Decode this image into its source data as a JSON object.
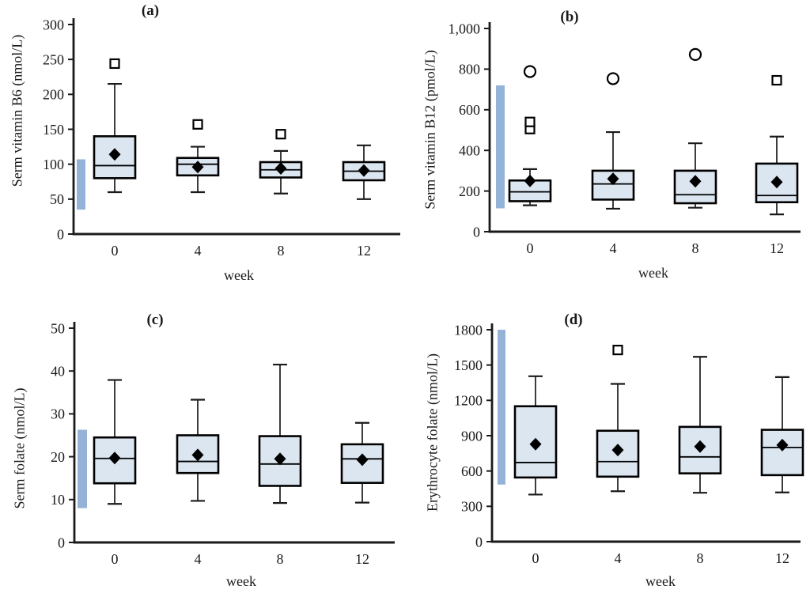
{
  "figure": {
    "background": "#ffffff"
  },
  "colors": {
    "box_fill": "#dce6f1",
    "box_border": "#000000",
    "ref_bar": "#95b3d7",
    "axis": "#1a1a1a",
    "text": "#1a1a1a"
  },
  "chart_data": [
    {
      "type": "box",
      "title": "(a)",
      "ylabel": "Serm vitamin B6 (nmol/L)",
      "xlabel": "week",
      "categories": [
        "0",
        "4",
        "8",
        "12"
      ],
      "ylim": [
        0,
        300
      ],
      "yticks": [
        0,
        50,
        100,
        150,
        200,
        250,
        300
      ],
      "ytick_labels": [
        "0",
        "50",
        "100",
        "150",
        "200",
        "250",
        "300"
      ],
      "reference_range": [
        35,
        107
      ],
      "legend": "grid off, reference range drawn as blue bar left of week 0",
      "boxes": [
        {
          "week": "0",
          "low": 60,
          "q1": 80,
          "median": 98,
          "q3": 140,
          "high": 215,
          "mean": 114,
          "outliers": [
            {
              "value": 244,
              "shape": "square"
            }
          ]
        },
        {
          "week": "4",
          "low": 60,
          "q1": 84,
          "median": 100,
          "q3": 109,
          "high": 125,
          "mean": 96,
          "outliers": [
            {
              "value": 157,
              "shape": "square"
            }
          ]
        },
        {
          "week": "8",
          "low": 58,
          "q1": 81,
          "median": 92,
          "q3": 103,
          "high": 119,
          "mean": 94,
          "outliers": [
            {
              "value": 143,
              "shape": "square"
            }
          ]
        },
        {
          "week": "12",
          "low": 50,
          "q1": 77,
          "median": 90,
          "q3": 103,
          "high": 127,
          "mean": 91,
          "outliers": []
        }
      ]
    },
    {
      "type": "box",
      "title": "(b)",
      "ylabel": "Serm vitamin B12 (pmol/L)",
      "xlabel": "week",
      "categories": [
        "0",
        "4",
        "8",
        "12"
      ],
      "ylim": [
        0,
        1000
      ],
      "yticks": [
        0,
        200,
        400,
        600,
        800,
        1000
      ],
      "ytick_labels": [
        "0",
        "200",
        "400",
        "600",
        "800",
        "1,000"
      ],
      "reference_range": [
        115,
        720
      ],
      "boxes": [
        {
          "week": "0",
          "low": 130,
          "q1": 150,
          "median": 196,
          "q3": 252,
          "high": 308,
          "mean": 250,
          "outliers": [
            {
              "value": 505,
              "shape": "square"
            },
            {
              "value": 540,
              "shape": "square"
            },
            {
              "value": 788,
              "shape": "circle"
            }
          ]
        },
        {
          "week": "4",
          "low": 113,
          "q1": 158,
          "median": 235,
          "q3": 300,
          "high": 490,
          "mean": 260,
          "outliers": [
            {
              "value": 753,
              "shape": "circle"
            }
          ]
        },
        {
          "week": "8",
          "low": 118,
          "q1": 140,
          "median": 182,
          "q3": 300,
          "high": 435,
          "mean": 248,
          "outliers": [
            {
              "value": 872,
              "shape": "circle"
            }
          ]
        },
        {
          "week": "12",
          "low": 85,
          "q1": 145,
          "median": 178,
          "q3": 335,
          "high": 468,
          "mean": 244,
          "outliers": [
            {
              "value": 745,
              "shape": "square"
            }
          ]
        }
      ]
    },
    {
      "type": "box",
      "title": "(c)",
      "ylabel": "Serm folate (nmol/L)",
      "xlabel": "week",
      "categories": [
        "0",
        "4",
        "8",
        "12"
      ],
      "ylim": [
        0,
        50
      ],
      "yticks": [
        0,
        10,
        20,
        30,
        40,
        50
      ],
      "ytick_labels": [
        "0",
        "10",
        "20",
        "30",
        "40",
        "50"
      ],
      "reference_range": [
        8,
        26.3
      ],
      "boxes": [
        {
          "week": "0",
          "low": 9,
          "q1": 13.8,
          "median": 19.6,
          "q3": 24.5,
          "high": 37.9,
          "mean": 19.7,
          "outliers": []
        },
        {
          "week": "4",
          "low": 9.7,
          "q1": 16.2,
          "median": 18.9,
          "q3": 25,
          "high": 33.3,
          "mean": 20.4,
          "outliers": []
        },
        {
          "week": "8",
          "low": 9.2,
          "q1": 13.2,
          "median": 18.3,
          "q3": 24.8,
          "high": 41.5,
          "mean": 19.5,
          "outliers": []
        },
        {
          "week": "12",
          "low": 9.3,
          "q1": 13.9,
          "median": 19.5,
          "q3": 22.9,
          "high": 27.9,
          "mean": 19.3,
          "outliers": []
        }
      ]
    },
    {
      "type": "box",
      "title": "(d)",
      "ylabel": "Erythrocyte folate (nmol/L)",
      "xlabel": "week",
      "categories": [
        "0",
        "4",
        "8",
        "12"
      ],
      "ylim": [
        0,
        1800
      ],
      "yticks": [
        0,
        300,
        600,
        900,
        1200,
        1500,
        1800
      ],
      "ytick_labels": [
        "0",
        "300",
        "600",
        "900",
        "1200",
        "1500",
        "1800"
      ],
      "reference_range": [
        485,
        1800
      ],
      "boxes": [
        {
          "week": "0",
          "low": 400,
          "q1": 545,
          "median": 672,
          "q3": 1150,
          "high": 1405,
          "mean": 828,
          "outliers": []
        },
        {
          "week": "4",
          "low": 428,
          "q1": 552,
          "median": 680,
          "q3": 942,
          "high": 1340,
          "mean": 778,
          "outliers": [
            {
              "value": 1628,
              "shape": "square"
            }
          ]
        },
        {
          "week": "8",
          "low": 415,
          "q1": 580,
          "median": 720,
          "q3": 975,
          "high": 1570,
          "mean": 808,
          "outliers": []
        },
        {
          "week": "12",
          "low": 418,
          "q1": 565,
          "median": 800,
          "q3": 950,
          "high": 1398,
          "mean": 820,
          "outliers": []
        }
      ]
    }
  ]
}
